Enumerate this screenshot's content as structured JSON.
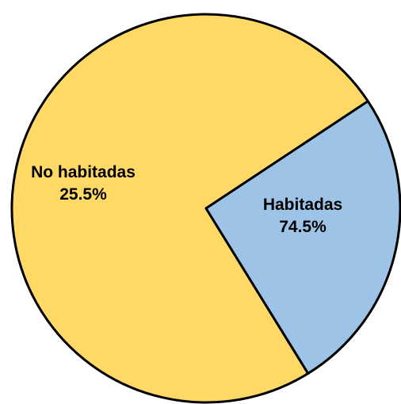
{
  "chart_data": {
    "type": "pie",
    "title": "",
    "slices": [
      {
        "name": "Habitadas",
        "value": 74.5,
        "display_value": "74.5%",
        "color": "#FFD966"
      },
      {
        "name": "No habitadas",
        "value": 25.5,
        "display_value": "25.5%",
        "color": "#9DC3E6"
      }
    ],
    "legend": "none",
    "labels_on_slices": true,
    "border_color": "#000000"
  }
}
